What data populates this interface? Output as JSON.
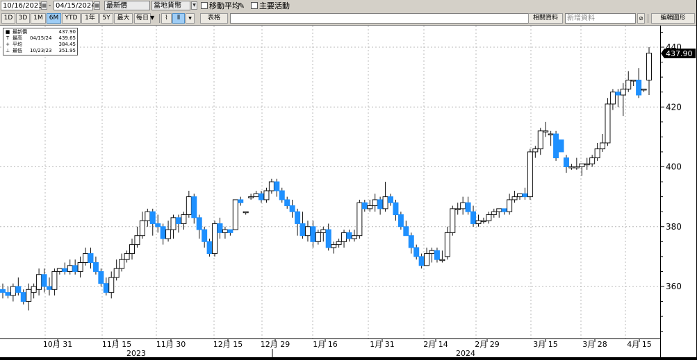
{
  "toolbar": {
    "start_date": "10/16/2023",
    "end_date": "04/15/2024",
    "price_field": "最新價",
    "currency": "當地貨幣",
    "moving_avg_label": "移動平均",
    "key_events_label": "主要活動",
    "periods": [
      "1D",
      "3D",
      "1M",
      "6M",
      "YTD",
      "1年",
      "5Y",
      "最大"
    ],
    "selected_period": "6M",
    "frequency": "每日",
    "table_label": "表格",
    "related_data": "相關資料",
    "add_data_placeholder": "新增資料",
    "edit_chart": "編輯圖形"
  },
  "legend": [
    {
      "marker": "■",
      "name": "最新價",
      "date": "",
      "value": "437.90"
    },
    {
      "marker": "T",
      "name": "最高",
      "date": "04/15/24",
      "value": "439.65"
    },
    {
      "marker": "+",
      "name": "平均",
      "date": "",
      "value": "384.45"
    },
    {
      "marker": "⊥",
      "name": "最低",
      "date": "10/23/23",
      "value": "351.95"
    }
  ],
  "last_price_tag": "437.90",
  "colors": {
    "up_fill": "#ffffff",
    "down_fill": "#1e90ff",
    "last_tag_bg": "#000000"
  },
  "chart_data": {
    "type": "candlestick",
    "y_ticks": [
      360,
      380,
      400,
      420,
      440
    ],
    "x_ticks": [
      "10月 31",
      "11月 15",
      "11月 30",
      "12月 15",
      "12月 29",
      "1月 16",
      "1月 31",
      "2月 14",
      "2月 29",
      "3月 15",
      "3月 28",
      "4月 15"
    ],
    "years": [
      "2023",
      "2024"
    ],
    "ylim": [
      341,
      446
    ],
    "grid": true,
    "candles": [
      [
        359,
        358,
        356,
        361
      ],
      [
        358,
        357,
        356,
        360
      ],
      [
        357,
        360,
        355,
        361
      ],
      [
        360,
        358,
        357,
        363
      ],
      [
        358,
        355,
        354,
        359
      ],
      [
        355,
        359,
        352,
        361
      ],
      [
        358,
        360,
        356,
        361
      ],
      [
        359,
        364,
        357,
        366
      ],
      [
        364,
        360,
        358,
        366
      ],
      [
        360,
        359,
        357,
        363
      ],
      [
        359,
        365,
        357,
        366
      ],
      [
        365,
        366,
        364,
        366
      ],
      [
        366,
        365,
        364,
        368
      ],
      [
        365,
        367,
        364,
        369
      ],
      [
        367,
        365,
        364,
        369
      ],
      [
        365,
        368,
        363,
        370
      ],
      [
        368,
        371,
        367,
        373
      ],
      [
        371,
        368,
        366,
        373
      ],
      [
        368,
        365,
        364,
        370
      ],
      [
        365,
        361,
        360,
        366
      ],
      [
        361,
        358,
        357,
        363
      ],
      [
        358,
        363,
        356,
        365
      ],
      [
        363,
        366,
        362,
        369
      ],
      [
        366,
        369,
        365,
        371
      ],
      [
        369,
        371,
        368,
        372
      ],
      [
        371,
        374,
        369,
        376
      ],
      [
        374,
        377,
        373,
        380
      ],
      [
        377,
        382,
        376,
        385
      ],
      [
        382,
        385,
        380,
        386
      ],
      [
        385,
        381,
        377,
        386
      ],
      [
        381,
        380,
        378,
        384
      ],
      [
        380,
        376,
        374,
        381
      ],
      [
        376,
        379,
        375,
        382
      ],
      [
        379,
        383,
        376,
        384
      ],
      [
        383,
        381,
        378,
        384
      ],
      [
        381,
        384,
        379,
        385
      ],
      [
        384,
        390,
        383,
        392
      ],
      [
        390,
        383,
        381,
        391
      ],
      [
        383,
        379,
        376,
        384
      ],
      [
        379,
        375,
        373,
        380
      ],
      [
        375,
        371,
        370,
        376
      ],
      [
        371,
        381,
        370,
        382
      ],
      [
        381,
        378,
        376,
        383
      ],
      [
        378,
        379,
        376,
        380
      ],
      [
        379,
        378,
        377,
        379
      ],
      [
        379,
        389,
        379,
        389
      ],
      [
        389,
        388,
        387,
        390
      ],
      [
        385,
        385,
        384,
        385
      ],
      [
        390,
        390,
        389,
        391
      ],
      [
        390,
        391,
        390,
        392
      ],
      [
        391,
        389,
        388,
        392
      ],
      [
        389,
        392,
        388,
        393
      ],
      [
        392,
        395,
        391,
        396
      ],
      [
        395,
        392,
        390,
        396
      ],
      [
        392,
        389,
        388,
        393
      ],
      [
        389,
        387,
        386,
        390
      ],
      [
        387,
        385,
        383,
        389
      ],
      [
        385,
        381,
        377,
        386
      ],
      [
        381,
        377,
        376,
        385
      ],
      [
        377,
        380,
        375,
        382
      ],
      [
        380,
        375,
        373,
        382
      ],
      [
        375,
        378,
        374,
        379
      ],
      [
        378,
        379,
        375,
        380
      ],
      [
        379,
        373,
        372,
        381
      ],
      [
        373,
        374,
        371,
        375
      ],
      [
        374,
        375,
        373,
        376
      ],
      [
        375,
        378,
        373,
        379
      ],
      [
        378,
        376,
        375,
        379
      ],
      [
        376,
        377,
        375,
        379
      ],
      [
        377,
        388,
        376,
        389
      ],
      [
        388,
        386,
        385,
        389
      ],
      [
        386,
        387,
        385,
        389
      ],
      [
        387,
        389,
        385,
        391
      ],
      [
        389,
        386,
        384,
        390
      ],
      [
        386,
        390,
        385,
        395
      ],
      [
        390,
        388,
        387,
        391
      ],
      [
        388,
        384,
        382,
        389
      ],
      [
        384,
        380,
        379,
        385
      ],
      [
        380,
        377,
        377,
        382
      ],
      [
        377,
        373,
        371,
        378
      ],
      [
        373,
        370,
        369,
        374
      ],
      [
        370,
        367,
        366,
        371
      ],
      [
        367,
        371,
        367,
        373
      ],
      [
        371,
        372,
        368,
        373
      ],
      [
        372,
        369,
        368,
        373
      ],
      [
        369,
        369,
        368,
        372
      ],
      [
        370,
        378,
        369,
        380
      ],
      [
        378,
        386,
        377,
        387
      ],
      [
        386,
        386,
        384,
        388
      ],
      [
        386,
        388,
        384,
        390
      ],
      [
        388,
        385,
        384,
        390
      ],
      [
        385,
        381,
        380,
        387
      ],
      [
        381,
        382,
        380,
        384
      ],
      [
        382,
        382,
        381,
        383
      ],
      [
        382,
        384,
        381,
        385
      ],
      [
        384,
        385,
        383,
        386
      ],
      [
        385,
        386,
        383,
        386
      ],
      [
        386,
        385,
        384,
        386
      ],
      [
        385,
        389,
        384,
        391
      ],
      [
        389,
        390,
        388,
        392
      ],
      [
        390,
        391,
        389,
        391
      ],
      [
        391,
        390,
        389,
        393
      ],
      [
        390,
        405,
        389,
        406
      ],
      [
        405,
        406,
        403,
        407
      ],
      [
        406,
        412,
        404,
        413
      ],
      [
        412,
        412,
        410,
        415
      ],
      [
        411,
        411,
        407,
        412
      ],
      [
        411,
        403,
        402,
        412
      ],
      [
        409,
        405,
        405,
        409
      ],
      [
        403,
        400,
        398,
        404
      ],
      [
        400,
        400,
        399,
        401
      ],
      [
        400,
        400,
        399,
        403
      ],
      [
        400,
        401,
        397,
        401
      ],
      [
        401,
        401,
        399,
        403
      ],
      [
        401,
        403,
        400,
        404
      ],
      [
        403,
        406,
        402,
        408
      ],
      [
        406,
        408,
        405,
        411
      ],
      [
        408,
        421,
        407,
        423
      ],
      [
        421,
        425,
        419,
        426
      ],
      [
        425,
        424,
        420,
        426
      ],
      [
        424,
        426,
        417,
        428
      ],
      [
        426,
        429,
        425,
        432
      ],
      [
        429,
        429,
        427,
        429
      ],
      [
        429,
        424,
        423,
        433
      ],
      [
        426,
        426,
        425,
        426
      ],
      [
        429,
        438,
        424,
        440
      ]
    ]
  }
}
